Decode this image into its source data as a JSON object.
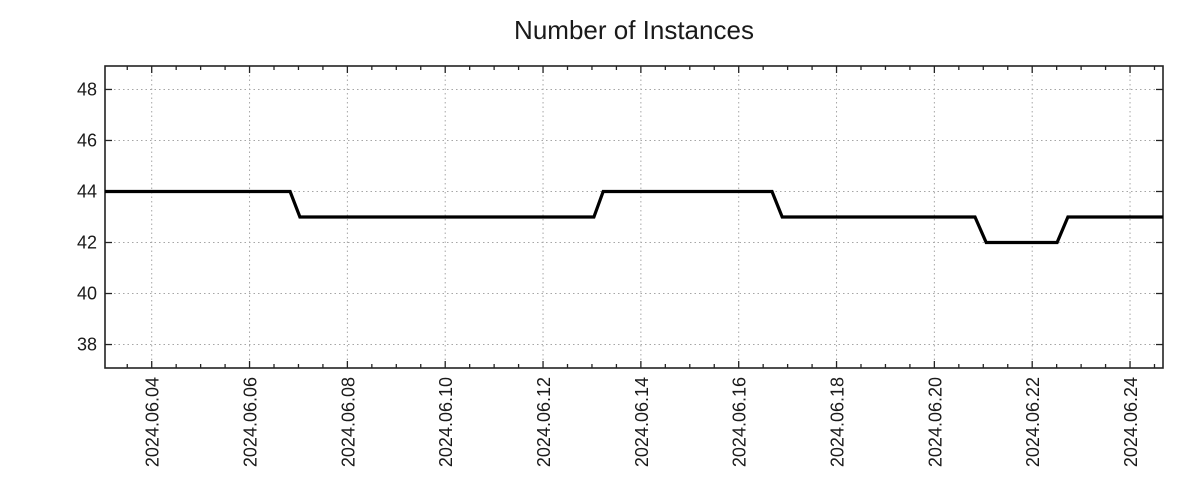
{
  "chart_data": {
    "type": "line",
    "title": "Number of Instances",
    "xlabel": "",
    "ylabel": "",
    "legend": "none",
    "grid": "dotted",
    "x_unit": "day of June 2024 (fractional)",
    "xlim": [
      3.045,
      24.674
    ],
    "ylim": [
      37.08,
      48.92
    ],
    "x_major_ticks": [
      {
        "t": 4,
        "label": "2024.06.04"
      },
      {
        "t": 6,
        "label": "2024.06.06"
      },
      {
        "t": 8,
        "label": "2024.06.08"
      },
      {
        "t": 10,
        "label": "2024.06.10"
      },
      {
        "t": 12,
        "label": "2024.06.12"
      },
      {
        "t": 14,
        "label": "2024.06.14"
      },
      {
        "t": 16,
        "label": "2024.06.16"
      },
      {
        "t": 18,
        "label": "2024.06.18"
      },
      {
        "t": 20,
        "label": "2024.06.20"
      },
      {
        "t": 22,
        "label": "2024.06.22"
      },
      {
        "t": 24,
        "label": "2024.06.24"
      }
    ],
    "x_minor_tick_interval_days": 0.5,
    "y_ticks": [
      38,
      40,
      42,
      44,
      46,
      48
    ],
    "series": [
      {
        "name": "Number of Instances",
        "color": "#000000",
        "style": "step",
        "points": [
          [
            3.045,
            44
          ],
          [
            6.83,
            44
          ],
          [
            7.03,
            43
          ],
          [
            13.04,
            43
          ],
          [
            13.23,
            44
          ],
          [
            16.68,
            44
          ],
          [
            16.89,
            43
          ],
          [
            20.83,
            43
          ],
          [
            21.06,
            42
          ],
          [
            22.51,
            42
          ],
          [
            22.73,
            43
          ],
          [
            24.674,
            43
          ]
        ]
      }
    ],
    "colors": {
      "line": "#000000",
      "grid": "#a6a6a6",
      "border": "#232323",
      "text": "#1a1a1a",
      "background": "#ffffff"
    }
  }
}
